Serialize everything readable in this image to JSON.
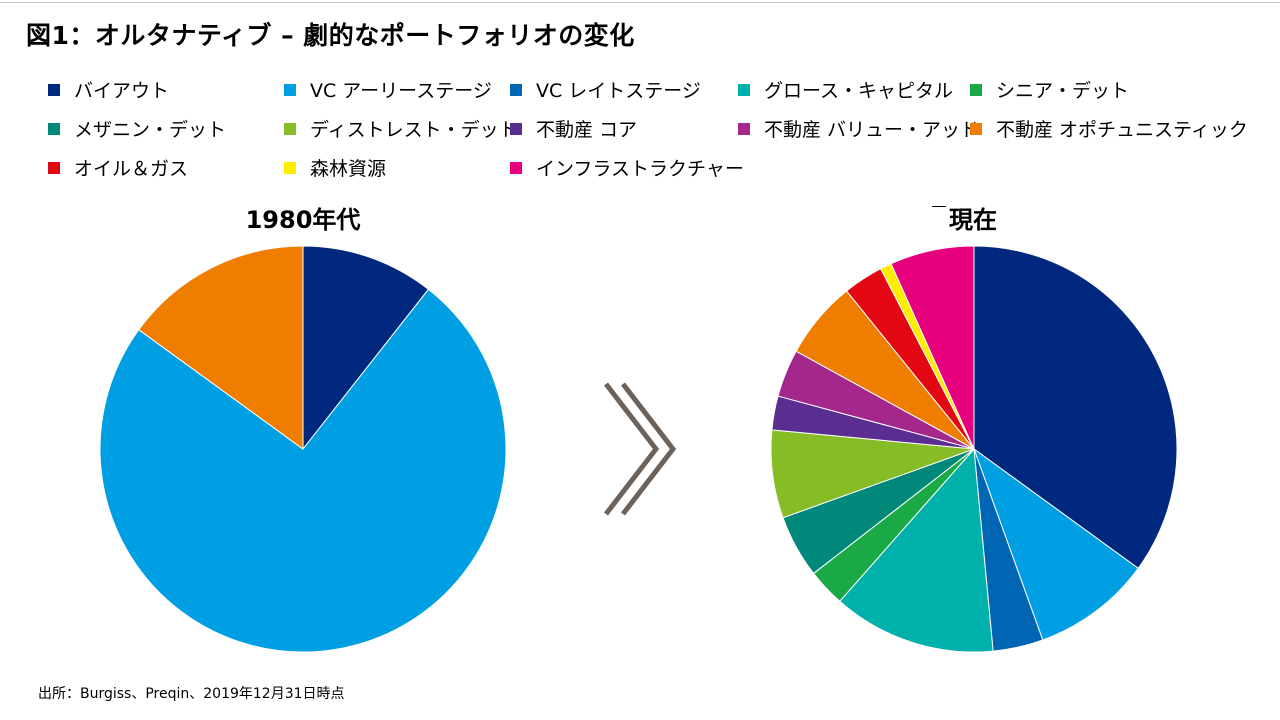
{
  "title": "図1：オルタナティブ – 劇的なポートフォリオの変化",
  "source": "出所：Burgiss、Preqin、2019年12月31日時点",
  "legend": [
    {
      "label": "バイアウト",
      "color": "#00287F"
    },
    {
      "label": "VC アーリーステージ",
      "color": "#009FE3"
    },
    {
      "label": "VC レイトステージ",
      "color": "#0066B3"
    },
    {
      "label": "グロース・キャピタル",
      "color": "#00B0AA"
    },
    {
      "label": "シニア・デット",
      "color": "#1BA946"
    },
    {
      "label": "メザニン・デット",
      "color": "#00897B"
    },
    {
      "label": "ディストレスト・デット",
      "color": "#86BC25"
    },
    {
      "label": "不動産 コア",
      "color": "#5A2D91"
    },
    {
      "label": "不動産 バリュー・アッド",
      "color": "#A4288C"
    },
    {
      "label": "不動産 オポチュニスティック",
      "color": "#EF7D00"
    },
    {
      "label": "オイル＆ガス",
      "color": "#E30613"
    },
    {
      "label": "森林資源",
      "color": "#FFED00"
    },
    {
      "label": "インフラストラクチャー",
      "color": "#E6007E"
    }
  ],
  "chart_data": [
    {
      "type": "pie",
      "title": "1980年代",
      "slices": [
        {
          "label": "バイアウト",
          "value": 10.6,
          "color": "#00287F"
        },
        {
          "label": "VC アーリーステージ",
          "value": 74.4,
          "color": "#009FE3"
        },
        {
          "label": "不動産 オポチュニスティック",
          "value": 15.0,
          "color": "#EF7D00"
        }
      ]
    },
    {
      "type": "pie",
      "title": "現在",
      "slices": [
        {
          "label": "バイアウト",
          "value": 35.0,
          "color": "#00287F"
        },
        {
          "label": "VC アーリーステージ",
          "value": 9.5,
          "color": "#009FE3"
        },
        {
          "label": "VC レイトステージ",
          "value": 4.0,
          "color": "#0066B3"
        },
        {
          "label": "グロース・キャピタル",
          "value": 13.0,
          "color": "#00B0AA"
        },
        {
          "label": "シニア・デット",
          "value": 3.0,
          "color": "#1BA946"
        },
        {
          "label": "メザニン・デット",
          "value": 5.0,
          "color": "#00897B"
        },
        {
          "label": "ディストレスト・デット",
          "value": 7.0,
          "color": "#86BC25"
        },
        {
          "label": "不動産 コア",
          "value": 2.7,
          "color": "#5A2D91"
        },
        {
          "label": "不動産 バリュー・アッド",
          "value": 3.8,
          "color": "#A4288C"
        },
        {
          "label": "不動産 オポチュニスティック",
          "value": 6.2,
          "color": "#EF7D00"
        },
        {
          "label": "オイル＆ガス",
          "value": 3.2,
          "color": "#E30613"
        },
        {
          "label": "森林資源",
          "value": 0.9,
          "color": "#FFED00"
        },
        {
          "label": "インフラストラクチャー",
          "value": 6.7,
          "color": "#E6007E"
        }
      ]
    }
  ]
}
